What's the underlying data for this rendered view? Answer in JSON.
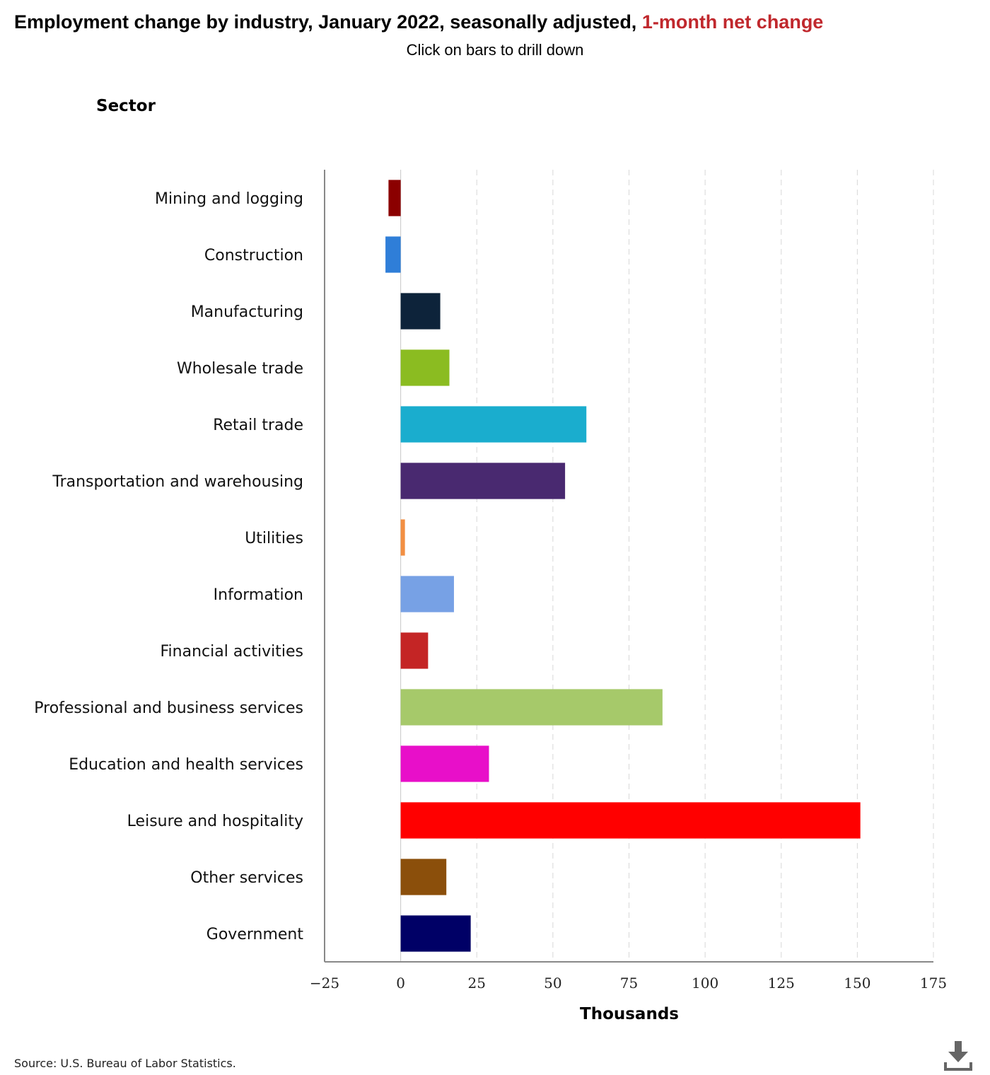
{
  "header": {
    "title_main": "Employment change by industry, January 2022, seasonally adjusted, ",
    "title_highlight": "1-month net change",
    "subtitle": "Click on bars to drill down"
  },
  "footer": {
    "source": "Source: U.S. Bureau of Labor Statistics."
  },
  "icons": {
    "download": "download-icon"
  },
  "chart_data": {
    "type": "bar",
    "orientation": "horizontal",
    "title": "Employment change by industry, January 2022, seasonally adjusted, 1-month net change",
    "subtitle": "Click on bars to drill down",
    "ylabel": "Sector",
    "xlabel": "Thousands",
    "xlim": [
      -25,
      175
    ],
    "xticks": [
      -25,
      0,
      25,
      50,
      75,
      100,
      125,
      150,
      175
    ],
    "xtick_labels": [
      "−25",
      "0",
      "25",
      "50",
      "75",
      "100",
      "125",
      "150",
      "175"
    ],
    "grid": true,
    "categories": [
      "Mining and logging",
      "Construction",
      "Manufacturing",
      "Wholesale trade",
      "Retail trade",
      "Transportation and warehousing",
      "Utilities",
      "Information",
      "Financial activities",
      "Professional and business services",
      "Education and health services",
      "Leisure and hospitality",
      "Other services",
      "Government"
    ],
    "values": [
      -4,
      -5,
      13,
      16,
      61,
      54,
      1.4,
      17.5,
      9,
      86,
      29,
      151,
      15,
      23
    ],
    "colors": [
      "#8b0000",
      "#2f7ed8",
      "#0d233a",
      "#8bbc21",
      "#1aadce",
      "#492970",
      "#f28f43",
      "#77a1e5",
      "#c42525",
      "#a6c96a",
      "#e80fc9",
      "#ff0000",
      "#8b4f0b",
      "#000066"
    ]
  }
}
